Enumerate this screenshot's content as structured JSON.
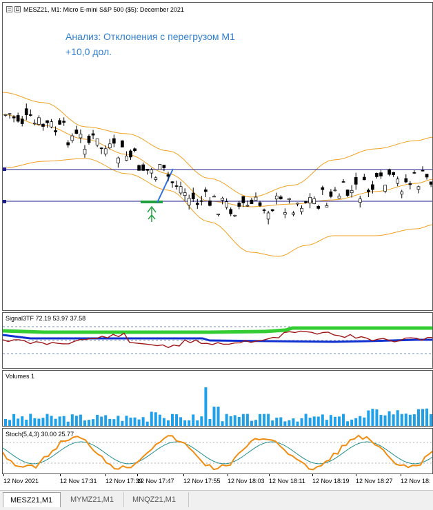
{
  "window": {
    "title": "MESZ21, M1:  Micro E-mini S&P 500 ($5): December 2021",
    "annotation_line1": "Анализ: Отклонения с перегрузом M1",
    "annotation_line2": "+10,0 дол."
  },
  "indicators": {
    "signal_label": "Signal3TF 72.19 53.97 37.58",
    "volumes_label": "Volumes 1",
    "stoch_label": "Stoch(5,4,3) 30.00 25.77"
  },
  "time_axis": [
    "12 Nov 2021",
    "12 Nov 17:31",
    "12 Nov 17:39",
    "12 Nov 17:47",
    "12 Nov 17:55",
    "12 Nov 18:03",
    "12 Nov 18:11",
    "12 Nov 18:19",
    "12 Nov 18:27",
    "12 Nov 18:"
  ],
  "tabs": [
    "MESZ21,M1",
    "MYMZ21,M1",
    "MNQZ21,M1"
  ],
  "colors": {
    "bollinger": "#f0a020",
    "level_lines": "#1c1c8a",
    "trend_line": "#3070e0",
    "arrow": "#20a040",
    "signal_green": "#33cc33",
    "signal_blue": "#1030d0",
    "signal_red": "#a01818",
    "volume_bars": "#1fa0e8",
    "stoch_main": "#f08c10",
    "stoch_signal": "#208c8c"
  },
  "icons": [
    "chart-menu-icon",
    "window-restore-icon"
  ]
}
